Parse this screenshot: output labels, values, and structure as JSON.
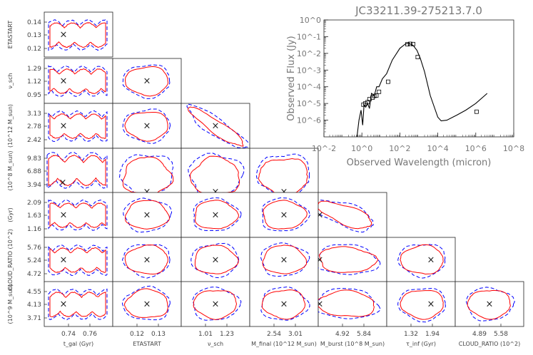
{
  "chart_data": [
    {
      "type": "corner",
      "description_label": "triangle corner plot of posterior contours",
      "parameters": [
        {
          "key": "tgal",
          "x_label": "t_gal (Gyr)",
          "y_label": "",
          "x_ticks": [
            "0.74",
            "0.76"
          ],
          "y_ticks": []
        },
        {
          "key": "etastart",
          "x_label": "ETASTART",
          "y_label": "ETASTART",
          "x_ticks": [
            "0.12",
            "0.13"
          ],
          "y_ticks": [
            "0.14",
            "0.13",
            "0.12"
          ]
        },
        {
          "key": "nusch",
          "x_label": "ν_sch",
          "y_label": "ν_sch",
          "x_ticks": [
            "1.01",
            "1.23"
          ],
          "y_ticks": [
            "1.29",
            "1.12",
            "0.95"
          ]
        },
        {
          "key": "mfinal",
          "x_label": "M_final (10^12 M_sun)",
          "y_label": "(10^12 M_sun)",
          "x_ticks": [
            "2.54",
            "3.01"
          ],
          "y_ticks": [
            "3.13",
            "2.78",
            "2.42"
          ]
        },
        {
          "key": "mburst",
          "x_label": "M_burst (10^8 M_sun)",
          "y_label": "(10^8 M_sun)",
          "x_ticks": [
            "4.92",
            "5.84"
          ],
          "y_ticks": [
            "9.83",
            "6.88",
            "3.94"
          ]
        },
        {
          "key": "tauinf",
          "x_label": "τ_inf (Gyr)",
          "y_label": "(Gyr)",
          "x_ticks": [
            "1.32",
            "1.94"
          ],
          "y_ticks": [
            "2.09",
            "1.63",
            "1.16"
          ]
        },
        {
          "key": "cloud",
          "x_label": "CLOUD_RATIO (10^2)",
          "y_label": "CLOUD_RATIO (10^2)",
          "x_ticks": [
            "4.89",
            "5.58"
          ],
          "y_ticks": [
            "5.76",
            "5.24",
            "4.72"
          ]
        },
        {
          "key": "mgas",
          "x_label": "",
          "y_label": "(10^9 M_sun)",
          "x_ticks": [],
          "y_ticks": [
            "4.55",
            "4.13",
            "3.71"
          ]
        }
      ],
      "series": [
        {
          "name": "contour-solid",
          "color": "#ff0000"
        },
        {
          "name": "contour-dashed",
          "color": "#0000ff"
        }
      ],
      "best_fit_marker": "×"
    },
    {
      "type": "line",
      "title": "JC33211.39-275213.7.0",
      "xlabel": "Observed Wavelength (micron)",
      "ylabel": "Observed Flux (Jy)",
      "xscale": "log",
      "yscale": "log",
      "xlim": [
        0.01,
        100000000
      ],
      "ylim": [
        1e-07,
        1
      ],
      "x_ticks": [
        "10^-2",
        "10^0",
        "10^2",
        "10^4",
        "10^6",
        "10^8"
      ],
      "y_ticks": [
        "10^0",
        "10^-1",
        "10^-2",
        "10^-3",
        "10^-4",
        "10^-5",
        "10^-6"
      ],
      "model_sed": {
        "x": [
          0.55,
          0.7,
          0.9,
          1.1,
          1.3,
          1.6,
          2.0,
          2.5,
          3.2,
          4.5,
          6.0,
          8.0,
          12,
          20,
          40,
          100,
          200,
          300,
          500,
          800,
          1200,
          2000,
          4000,
          10000,
          15000,
          30000,
          100000,
          300000,
          1000000,
          4000000
        ],
        "y": [
          1e-07,
          1e-06,
          4e-06,
          5e-07,
          8e-06,
          6e-06,
          1e-05,
          5e-06,
          4e-05,
          3e-05,
          0.0001,
          0.0001,
          0.0003,
          0.0006,
          0.004,
          0.02,
          0.037,
          0.04,
          0.03,
          0.015,
          0.005,
          0.0008,
          3e-05,
          1.5e-06,
          9e-07,
          1e-06,
          2e-06,
          4e-06,
          1e-05,
          4e-05
        ]
      },
      "observations": {
        "x": [
          1.2,
          1.5,
          2.0,
          2.5,
          3.6,
          4.5,
          5.8,
          8.0,
          24,
          250,
          350,
          500,
          870,
          1100000
        ],
        "y": [
          8.5e-06,
          1e-05,
          1.2e-05,
          1.8e-05,
          2.2e-05,
          2.8e-05,
          3e-05,
          5e-05,
          0.0002,
          0.035,
          0.037,
          0.036,
          0.006,
          3.2e-06
        ]
      }
    }
  ]
}
